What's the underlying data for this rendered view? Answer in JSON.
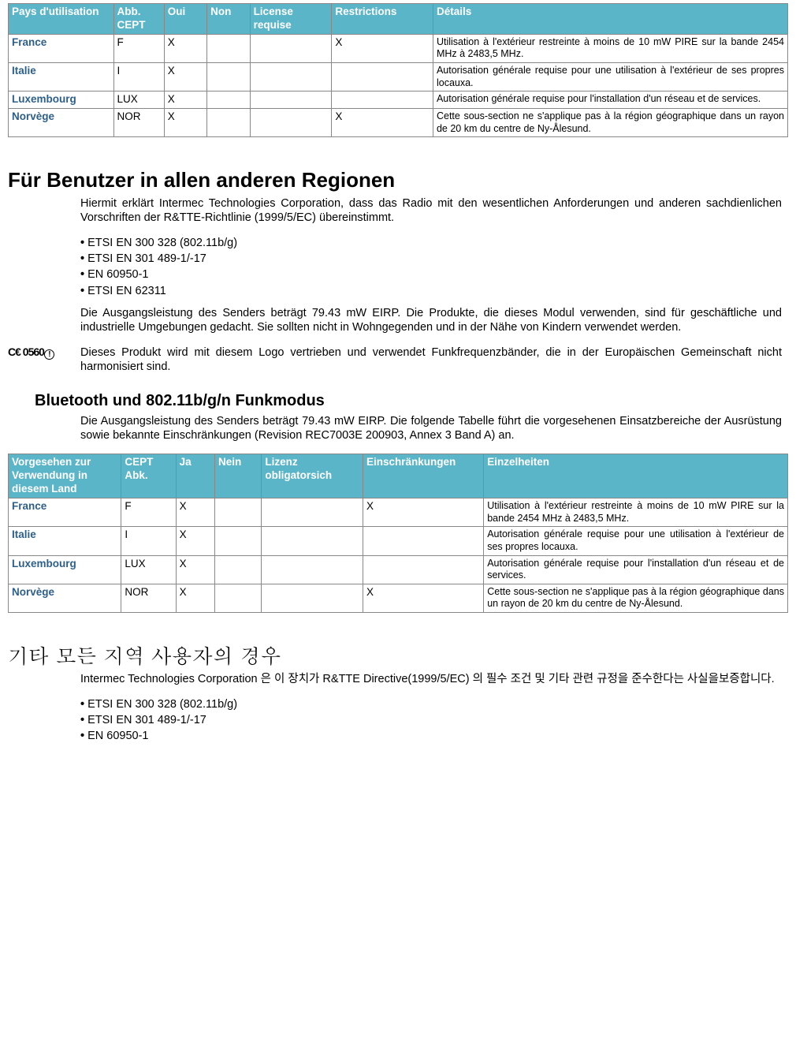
{
  "table1": {
    "headers": [
      "Pays d'utilisation",
      "Abb. CEPT",
      "Oui",
      "Non",
      "License requise",
      "Restrictions",
      "Détails"
    ],
    "rows": [
      {
        "country": "France",
        "abbr": "F",
        "oui": "X",
        "non": "",
        "lic": "",
        "restr": "X",
        "det": "Utilisation à l'extérieur restreinte à moins de 10 mW PIRE sur la bande 2454 MHz à 2483,5 MHz."
      },
      {
        "country": "Italie",
        "abbr": "I",
        "oui": "X",
        "non": "",
        "lic": "",
        "restr": "",
        "det": "Autorisation générale requise pour une utilisation à l'extérieur de ses propres locauxa."
      },
      {
        "country": "Luxembourg",
        "abbr": "LUX",
        "oui": "X",
        "non": "",
        "lic": "",
        "restr": "",
        "det": "Autorisation générale requise pour l'installation d'un réseau et de services."
      },
      {
        "country": "Norvège",
        "abbr": "NOR",
        "oui": "X",
        "non": "",
        "lic": "",
        "restr": "X",
        "det": "Cette sous-section ne s'applique pas à la région géographique dans un rayon de 20 km du centre de Ny-Ålesund."
      }
    ]
  },
  "de": {
    "heading": "Für Benutzer in allen anderen Regionen",
    "p1": "Hiermit erklärt Intermec Technologies Corporation, dass das Radio mit den wesentlichen Anforderungen und anderen sachdienlichen Vorschriften der R&TTE-Richtlinie (1999/5/EC) übereinstimmt.",
    "bullets": [
      "ETSI EN 300 328 (802.11b/g)",
      "ETSI EN 301 489-1/-17",
      "EN 60950-1",
      "ETSI EN 62311"
    ],
    "p2": "Die Ausgangsleistung des Senders beträgt 79.43 mW EIRP. Die Produkte, die dieses Modul verwenden, sind für geschäftliche und industrielle Umgebungen gedacht. Sie sollten nicht in Wohngegenden und in der Nähe von Kindern verwendet werden.",
    "ce_label_a": "C€ 0560",
    "ce_text": "Dieses Produkt wird mit diesem Logo vertrieben und verwendet Funkfrequenzbänder, die in der Europäischen Gemeinschaft nicht harmonisiert sind.",
    "sub": "Bluetooth und 802.11b/g/n Funkmodus",
    "p3": "Die Ausgangsleistung des Senders beträgt 79.43 mW EIRP. Die folgende Tabelle führt die vorgesehenen Einsatzbereiche der Ausrüstung sowie bekannte Einschränkungen (Revision REC7003E 200903, Annex 3 Band A) an."
  },
  "table2": {
    "headers": [
      "Vorgesehen zur Verwendung in diesem Land",
      "CEPT Abk.",
      "Ja",
      "Nein",
      "Lizenz obligatorsich",
      "Einschränkungen",
      "Einzelheiten"
    ],
    "rows": [
      {
        "country": "France",
        "abbr": "F",
        "oui": "X",
        "non": "",
        "lic": "",
        "restr": "X",
        "det": "Utilisation à l'extérieur restreinte à moins de 10 mW PIRE sur la bande 2454 MHz à 2483,5 MHz."
      },
      {
        "country": "Italie",
        "abbr": "I",
        "oui": "X",
        "non": "",
        "lic": "",
        "restr": "",
        "det": "Autorisation générale requise pour une utilisation à l'extérieur de ses propres locauxa."
      },
      {
        "country": "Luxembourg",
        "abbr": "LUX",
        "oui": "X",
        "non": "",
        "lic": "",
        "restr": "",
        "det": "Autorisation générale requise pour l'installation d'un réseau et de services."
      },
      {
        "country": "Norvège",
        "abbr": "NOR",
        "oui": "X",
        "non": "",
        "lic": "",
        "restr": "X",
        "det": "Cette sous-section ne s'applique pas à la région géographique dans un rayon de 20 km du centre de Ny-Ålesund."
      }
    ]
  },
  "ko": {
    "heading": "기타 모든 지역 사용자의 경우",
    "p1": "Intermec Technologies Corporation 은 이 장치가 R&TTE Directive(1999/5/EC) 의 필수 조건 및 기타 관련 규정을 준수한다는 사실을보증합니다.",
    "bullets": [
      "ETSI EN 300 328 (802.11b/g)",
      "ETSI EN 301 489-1/-17",
      "EN 60950-1"
    ]
  },
  "style": {
    "header_bg": "#5bb5c9",
    "header_fg": "#ffffff",
    "country_fg": "#2d5f8b",
    "border": "#888888"
  }
}
